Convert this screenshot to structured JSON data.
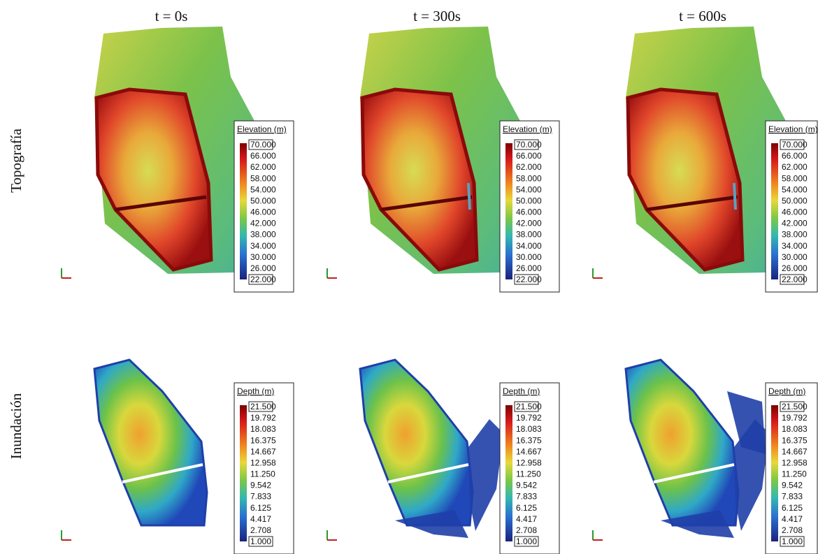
{
  "columns": [
    {
      "title": "t = 0s"
    },
    {
      "title": "t = 300s"
    },
    {
      "title": "t = 600s"
    }
  ],
  "rows": [
    {
      "label": "Topografía",
      "legend": {
        "title": "Elevation (m)",
        "ticks": [
          "70.000",
          "66.000",
          "62.000",
          "58.000",
          "54.000",
          "50.000",
          "46.000",
          "42.000",
          "38.000",
          "34.000",
          "30.000",
          "26.000",
          "22.000"
        ]
      }
    },
    {
      "label": "Inundación",
      "legend": {
        "title": "Depth (m)",
        "ticks": [
          "21.500",
          "19.792",
          "18.083",
          "16.375",
          "14.667",
          "12.958",
          "11.250",
          "9.542",
          "7.833",
          "6.125",
          "4.417",
          "2.708",
          "1.000"
        ]
      }
    }
  ]
}
